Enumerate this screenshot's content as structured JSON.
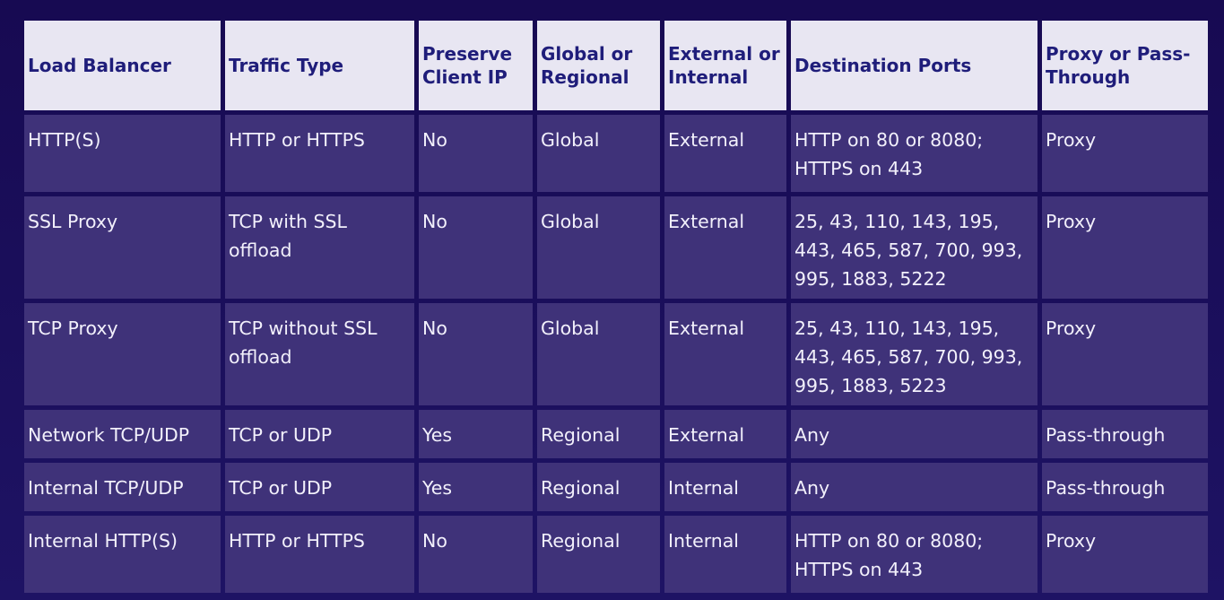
{
  "table": {
    "headers": [
      "Load Balancer",
      "Traffic Type",
      "Preserve Client IP",
      "Global or Regional",
      "External or Internal",
      "Destination Ports",
      "Proxy or Pass-Through"
    ],
    "rows": [
      [
        "HTTP(S)",
        "HTTP or HTTPS",
        "No",
        "Global",
        "External",
        "HTTP on 80 or 8080; HTTPS on 443",
        "Proxy"
      ],
      [
        "SSL Proxy",
        "TCP with SSL offload",
        "No",
        "Global",
        "External",
        "25, 43, 110, 143, 195, 443, 465, 587, 700, 993, 995, 1883, 5222",
        "Proxy"
      ],
      [
        "TCP Proxy",
        "TCP without SSL offload",
        "No",
        "Global",
        "External",
        "25, 43, 110, 143, 195, 443, 465, 587, 700, 993, 995, 1883, 5223",
        "Proxy"
      ],
      [
        "Network TCP/UDP",
        "TCP or UDP",
        "Yes",
        "Regional",
        "External",
        "Any",
        "Pass-through"
      ],
      [
        "Internal TCP/UDP",
        "TCP or UDP",
        "Yes",
        "Regional",
        "Internal",
        "Any",
        "Pass-through"
      ],
      [
        "Internal HTTP(S)",
        "HTTP or HTTPS",
        "No",
        "Regional",
        "Internal",
        "HTTP on 80 or 8080; HTTPS on 443",
        "Proxy"
      ]
    ]
  },
  "colors": {
    "page_background": "#1a0e5a",
    "header_background": "#e8e6f2",
    "header_text": "#1f1d7a",
    "cell_background": "#3f3279",
    "cell_text": "#f2f0fb"
  }
}
